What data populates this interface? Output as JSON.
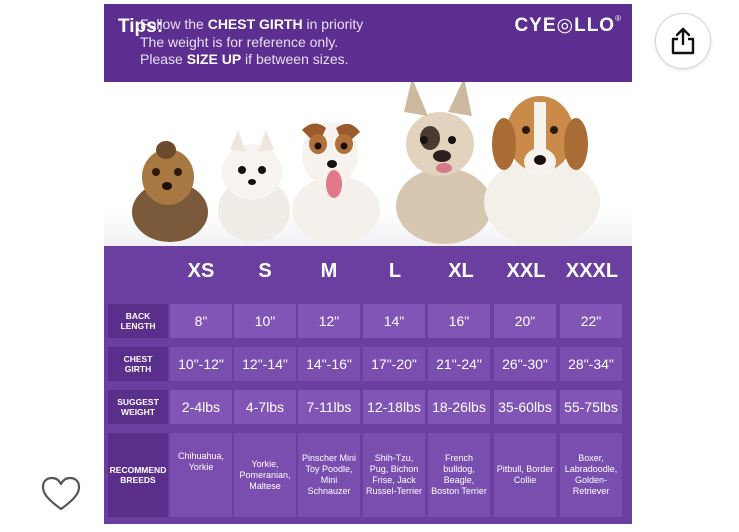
{
  "tips": {
    "label": "Tips:",
    "line1_pre": "Follow the ",
    "line1_bold": "CHEST GIRTH",
    "line1_post": " in priority",
    "line2": "The weight is for reference only.",
    "line3_pre": "Please ",
    "line3_bold": "SIZE UP",
    "line3_post": " if between sizes."
  },
  "brand": {
    "name": "CYE◎LLO",
    "mark": "®"
  },
  "size_chart": {
    "sizes": [
      "XS",
      "S",
      "M",
      "L",
      "XL",
      "XXL",
      "XXXL"
    ],
    "rows": [
      {
        "label": "BACK LENGTH",
        "values": [
          "8\"",
          "10\"",
          "12\"",
          "14\"",
          "16\"",
          "20\"",
          "22\""
        ]
      },
      {
        "label": "CHEST GIRTH",
        "values": [
          "10\"-12\"",
          "12\"-14\"",
          "14\"-16\"",
          "17\"-20\"",
          "21\"-24\"",
          "26\"-30\"",
          "28\"-34\""
        ]
      },
      {
        "label": "SUGGEST WEIGHT",
        "values": [
          "2-4lbs",
          "4-7lbs",
          "7-11lbs",
          "12-18lbs",
          "18-26lbs",
          "35-60lbs",
          "55-75lbs"
        ]
      },
      {
        "label": "RECOMMEND BREEDS",
        "values": [
          "Chihuahua, Yorkie",
          "Yorkie, Pomeranian, Maltese",
          "Pinscher Mini Toy Poodle, Mini Schnauzer",
          "Shih-Tzu, Pug, Bichon Frise, Jack Russel-Terrier",
          "French bulldog, Beagle, Boston Terrier",
          "Pitbull, Border Collie",
          "Boxer, Labradoodle, Golden-Retriever"
        ]
      }
    ]
  },
  "dogs": [
    "yorkie",
    "pomeranian",
    "jack-russell",
    "french-bulldog",
    "beagle"
  ],
  "icons": {
    "share": "share-icon",
    "favorite": "heart-icon"
  },
  "colors": {
    "band": "#5b2e8f",
    "table_bg": "#6b3fa0",
    "cell": "#8155b6"
  }
}
